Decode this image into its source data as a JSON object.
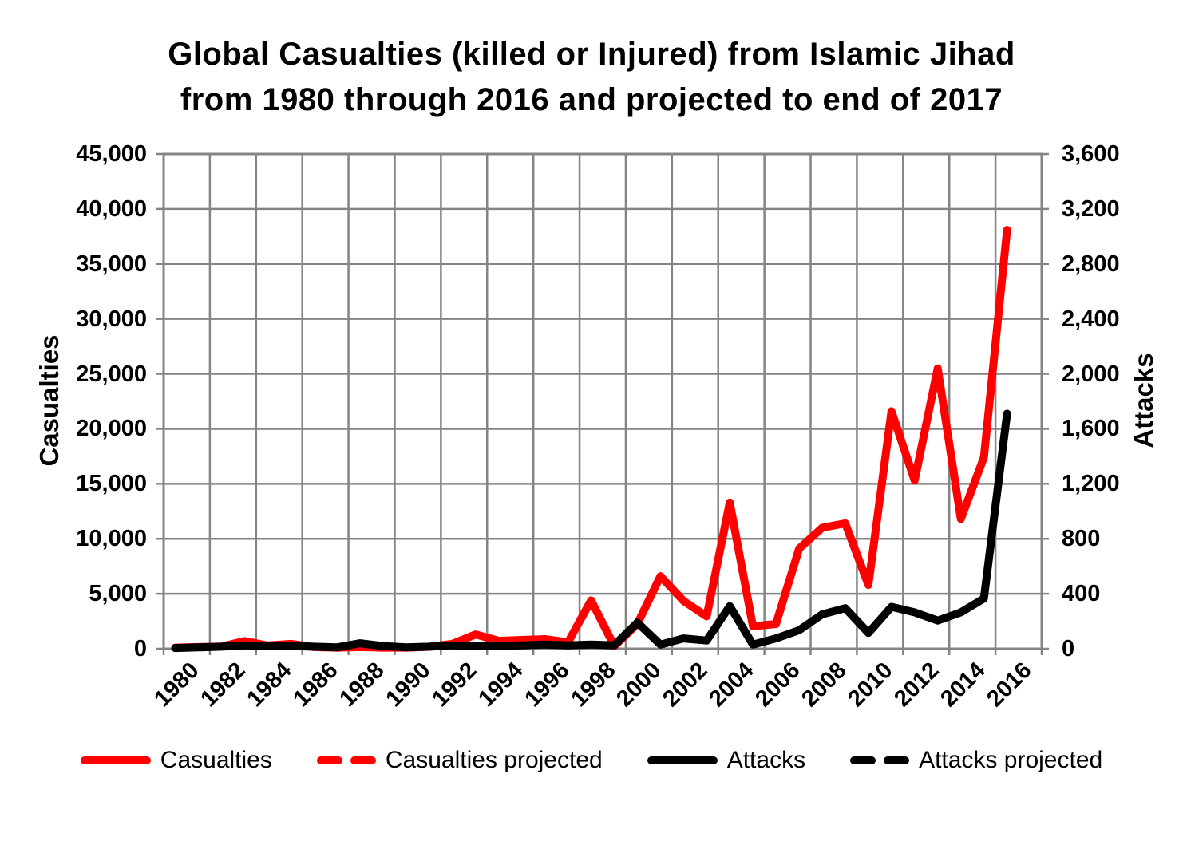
{
  "title": {
    "line1": "Global Casualties (killed or Injured) from Islamic Jihad",
    "line2": "from 1980 through 2016 and projected to end of 2017"
  },
  "chart_data": {
    "type": "line",
    "categories": [
      1980,
      1981,
      1982,
      1983,
      1984,
      1985,
      1986,
      1987,
      1988,
      1989,
      1990,
      1991,
      1992,
      1993,
      1994,
      1995,
      1996,
      1997,
      1998,
      1999,
      2000,
      2001,
      2002,
      2003,
      2004,
      2005,
      2006,
      2007,
      2008,
      2009,
      2010,
      2011,
      2012,
      2013,
      2014,
      2015,
      2016
    ],
    "x_axis": {
      "first_category": 1980,
      "last_category": 2017,
      "tick_labels": [
        "1980",
        "1982",
        "1984",
        "1986",
        "1988",
        "1990",
        "1992",
        "1994",
        "1996",
        "1998",
        "2000",
        "2002",
        "2004",
        "2006",
        "2008",
        "2010",
        "2012",
        "2014",
        "2016"
      ],
      "label_every": 2
    },
    "left_axis": {
      "label": "Casualties",
      "min": 0,
      "max": 45000,
      "step": 5000,
      "tick_labels": [
        "45,000",
        "40,000",
        "35,000",
        "30,000",
        "25,000",
        "20,000",
        "15,000",
        "10,000",
        "5,000",
        "0"
      ]
    },
    "right_axis": {
      "label": "Attacks",
      "min": 0,
      "max": 3600,
      "step": 400,
      "tick_labels": [
        "3,600",
        "3,200",
        "2,800",
        "2,400",
        "2,000",
        "1,600",
        "1,200",
        "800",
        "400",
        "0"
      ]
    },
    "series": [
      {
        "name": "Casualties",
        "axis": "left",
        "color": "#ff0000",
        "style": "solid",
        "values": [
          100,
          150,
          200,
          700,
          300,
          450,
          150,
          100,
          150,
          100,
          100,
          180,
          450,
          1300,
          720,
          800,
          870,
          580,
          4400,
          250,
          2250,
          6600,
          4350,
          2950,
          13300,
          2050,
          2250,
          9100,
          11000,
          11400,
          5800,
          21600,
          15300,
          25500,
          11800,
          17400,
          38100
        ]
      },
      {
        "name": "Casualties projected",
        "axis": "left",
        "color": "#ff0000",
        "style": "dashed",
        "values": []
      },
      {
        "name": "Attacks",
        "axis": "right",
        "color": "#000000",
        "style": "solid",
        "values": [
          5,
          10,
          15,
          25,
          20,
          20,
          15,
          10,
          40,
          20,
          10,
          15,
          25,
          20,
          20,
          25,
          30,
          25,
          30,
          25,
          190,
          30,
          75,
          60,
          310,
          30,
          75,
          135,
          250,
          295,
          115,
          305,
          265,
          205,
          265,
          365,
          1710
        ]
      },
      {
        "name": "Attacks projected",
        "axis": "right",
        "color": "#000000",
        "style": "dashed",
        "values": []
      }
    ],
    "grid": true,
    "legend_position": "bottom",
    "colors": {
      "casualties": "#ff0000",
      "attacks": "#000000",
      "grid": "#848484",
      "background": "#ffffff"
    }
  },
  "legend": {
    "items": [
      {
        "label": "Casualties",
        "color": "#ff0000",
        "style": "solid"
      },
      {
        "label": "Casualties projected",
        "color": "#ff0000",
        "style": "dashed"
      },
      {
        "label": "Attacks",
        "color": "#000000",
        "style": "solid"
      },
      {
        "label": "Attacks projected",
        "color": "#000000",
        "style": "dashed"
      }
    ]
  }
}
